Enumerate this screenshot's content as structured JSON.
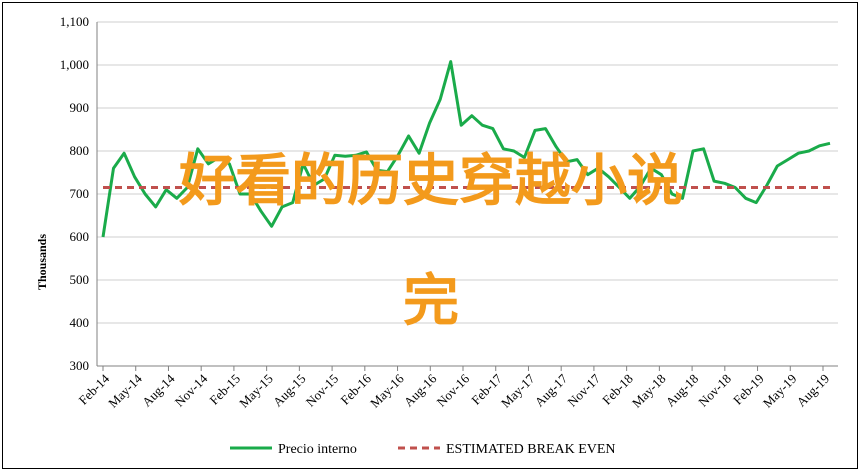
{
  "chart_data": {
    "type": "line",
    "title": "",
    "xlabel": "",
    "ylabel": "Thousands",
    "ylim": [
      300,
      1100
    ],
    "yticks": [
      "300",
      "400",
      "500",
      "600",
      "700",
      "800",
      "900",
      "1,000",
      "1,100"
    ],
    "x_tick_labels": [
      "Feb-14",
      "May-14",
      "Aug-14",
      "Nov-14",
      "Feb-15",
      "May-15",
      "Aug-15",
      "Nov-15",
      "Feb-16",
      "May-16",
      "Aug-16",
      "Nov-16",
      "Feb-17",
      "May-17",
      "Aug-17",
      "Nov-17",
      "Feb-18",
      "May-18",
      "Aug-18",
      "Nov-18",
      "Feb-19",
      "May-19",
      "Aug-19"
    ],
    "grid": true,
    "legend_position": "bottom",
    "series": [
      {
        "name": "Precio interno",
        "color": "#1aab4a",
        "values": [
          600,
          760,
          795,
          740,
          700,
          670,
          710,
          690,
          715,
          805,
          770,
          785,
          770,
          700,
          700,
          660,
          625,
          670,
          680,
          770,
          720,
          735,
          790,
          788,
          790,
          798,
          755,
          752,
          790,
          835,
          795,
          865,
          920,
          1008,
          860,
          882,
          860,
          852,
          805,
          800,
          785,
          848,
          852,
          810,
          775,
          780,
          745,
          760,
          740,
          715,
          690,
          718,
          760,
          745,
          700,
          690,
          800,
          805,
          730,
          725,
          715,
          690,
          680,
          720,
          765,
          780,
          795,
          800,
          812,
          818
        ]
      },
      {
        "name": "ESTIMATED BREAK EVEN",
        "color": "#c0504d",
        "dashed": true,
        "values": [
          715,
          715
        ]
      }
    ]
  },
  "overlay": {
    "line1": "好看的历史穿越小说",
    "line2": "完"
  }
}
